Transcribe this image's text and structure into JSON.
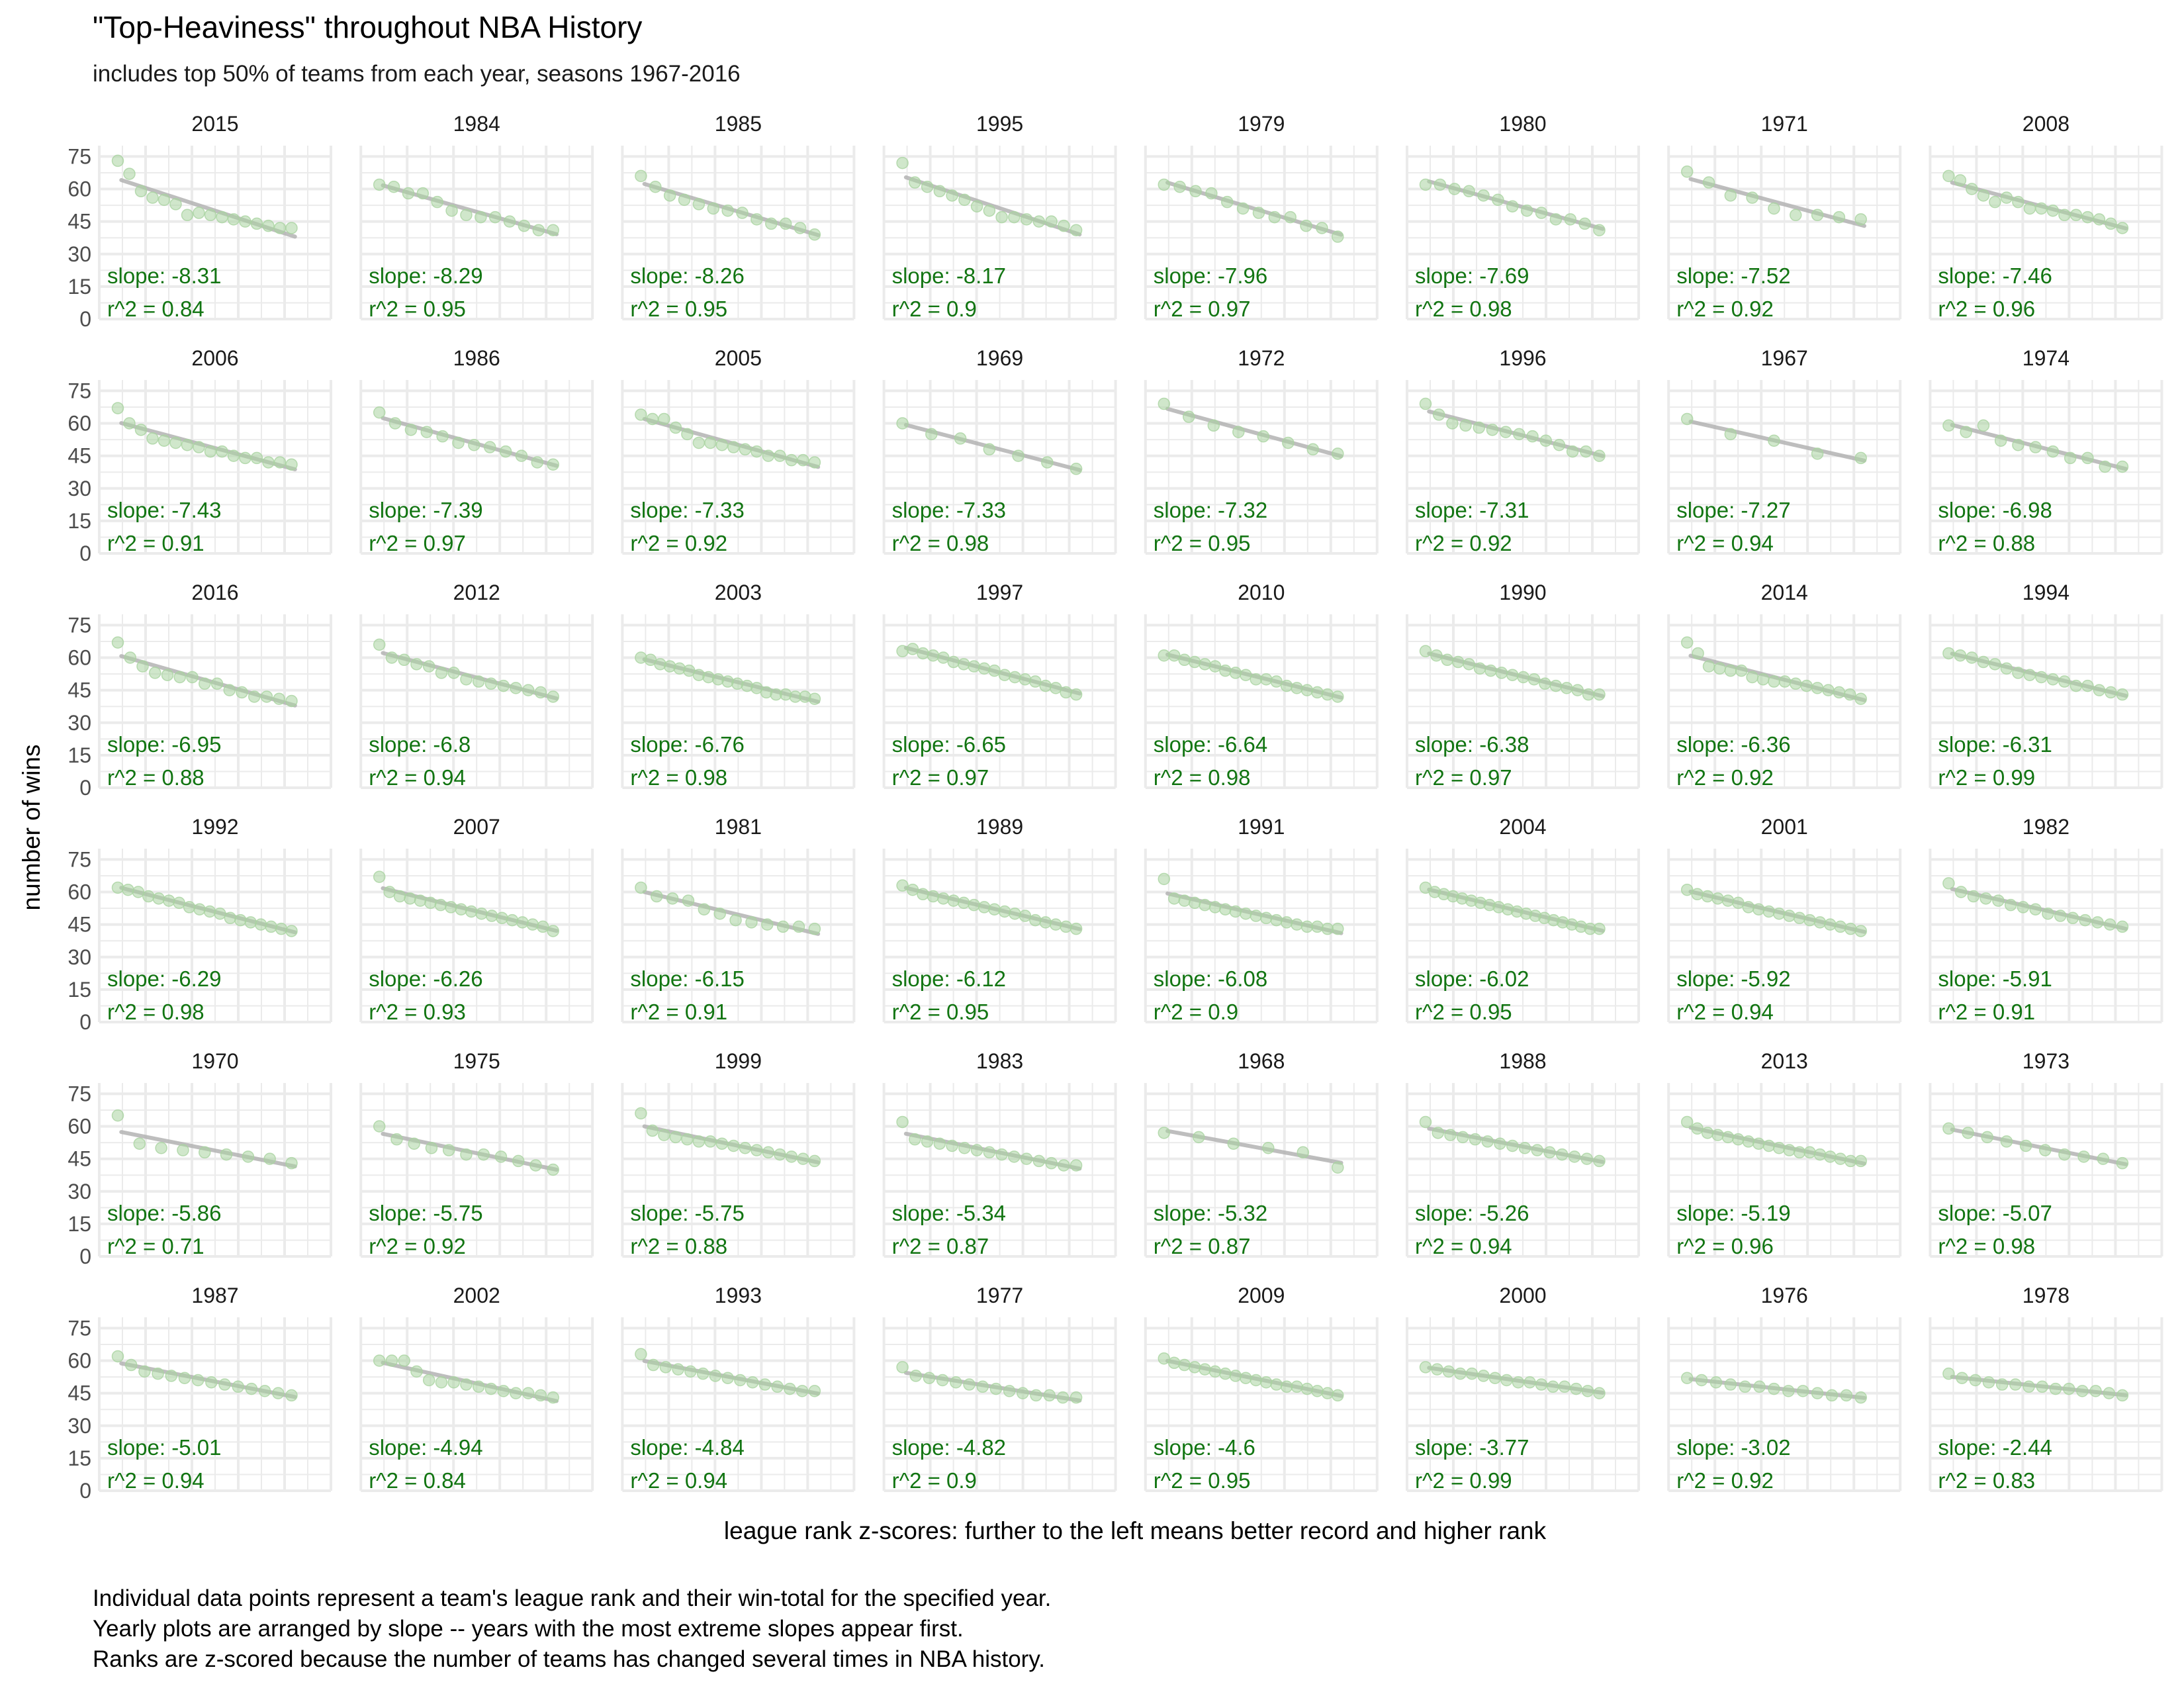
{
  "title": "\"Top-Heaviness\" throughout NBA History",
  "subtitle": "includes top 50% of teams from each year, seasons 1967-2016",
  "caption": [
    "Individual data points represent a team's league rank and their win-total for the specified year.",
    "Yearly plots are arranged by slope -- years with the most extreme slopes appear first.",
    "Ranks are z-scored because the number of teams has changed several times in NBA history."
  ],
  "colors": {
    "points": "#a9d3a0",
    "fit_line": "#b3b3b3",
    "annotation": "#127512",
    "grid": "#ebebeb"
  },
  "chart_data": {
    "type": "scatter",
    "title": "\"Top-Heaviness\" throughout NBA History",
    "subtitle": "includes top 50% of teams from each year, seasons 1967-2016",
    "xlabel": "league rank z-scores: further to the left means better record and higher rank",
    "ylabel": "number of wins",
    "y_ticks": [
      0,
      15,
      30,
      45,
      60,
      75
    ],
    "ylim": [
      0,
      80
    ],
    "grid": true,
    "facet_layout": "6 rows x 8 columns",
    "facets": [
      {
        "year": "2015",
        "slope": "-8.31",
        "r2": "0.84",
        "points": [
          73,
          67,
          59,
          56,
          55,
          53,
          48,
          49,
          48,
          47,
          46,
          45,
          44,
          43,
          42,
          42
        ]
      },
      {
        "year": "1984",
        "slope": "-8.29",
        "r2": "0.95",
        "points": [
          62,
          61,
          58,
          58,
          54,
          50,
          48,
          47,
          47,
          45,
          43,
          41,
          41
        ]
      },
      {
        "year": "1985",
        "slope": "-8.26",
        "r2": "0.95",
        "points": [
          66,
          61,
          57,
          55,
          53,
          51,
          50,
          49,
          46,
          44,
          44,
          42,
          39
        ]
      },
      {
        "year": "1995",
        "slope": "-8.17",
        "r2": "0.9",
        "points": [
          72,
          63,
          61,
          59,
          57,
          55,
          52,
          50,
          47,
          47,
          46,
          45,
          45,
          43,
          41
        ]
      },
      {
        "year": "1979",
        "slope": "-7.96",
        "r2": "0.97",
        "points": [
          62,
          61,
          59,
          58,
          54,
          51,
          49,
          47,
          47,
          43,
          42,
          38
        ]
      },
      {
        "year": "1980",
        "slope": "-7.69",
        "r2": "0.98",
        "points": [
          62,
          62,
          60,
          59,
          57,
          55,
          52,
          50,
          49,
          46,
          46,
          44,
          41
        ]
      },
      {
        "year": "1971",
        "slope": "-7.52",
        "r2": "0.92",
        "points": [
          68,
          63,
          57,
          56,
          51,
          48,
          48,
          47,
          46
        ]
      },
      {
        "year": "2008",
        "slope": "-7.46",
        "r2": "0.96",
        "points": [
          66,
          64,
          60,
          57,
          54,
          56,
          54,
          51,
          51,
          50,
          48,
          48,
          47,
          46,
          44,
          42
        ]
      },
      {
        "year": "2006",
        "slope": "-7.43",
        "r2": "0.91",
        "points": [
          67,
          60,
          57,
          53,
          52,
          51,
          50,
          49,
          47,
          47,
          45,
          44,
          44,
          42,
          42,
          41
        ]
      },
      {
        "year": "1986",
        "slope": "-7.39",
        "r2": "0.97",
        "points": [
          65,
          60,
          57,
          56,
          54,
          51,
          50,
          49,
          47,
          45,
          42,
          41
        ]
      },
      {
        "year": "2005",
        "slope": "-7.33",
        "r2": "0.92",
        "points": [
          64,
          62,
          62,
          58,
          55,
          51,
          51,
          50,
          49,
          48,
          47,
          45,
          45,
          43,
          43,
          42
        ]
      },
      {
        "year": "1969",
        "slope": "-7.33",
        "r2": "0.98",
        "points": [
          60,
          55,
          53,
          48,
          45,
          42,
          39
        ]
      },
      {
        "year": "1972",
        "slope": "-7.32",
        "r2": "0.95",
        "points": [
          69,
          63,
          59,
          56,
          54,
          51,
          48,
          46
        ]
      },
      {
        "year": "1996",
        "slope": "-7.31",
        "r2": "0.92",
        "points": [
          69,
          64,
          60,
          59,
          58,
          57,
          56,
          55,
          54,
          52,
          50,
          47,
          47,
          45
        ]
      },
      {
        "year": "1967",
        "slope": "-7.27",
        "r2": "0.94",
        "points": [
          62,
          55,
          52,
          46,
          44
        ]
      },
      {
        "year": "1974",
        "slope": "-6.98",
        "r2": "0.88",
        "points": [
          59,
          56,
          59,
          52,
          50,
          49,
          47,
          44,
          44,
          40,
          40
        ]
      },
      {
        "year": "2016",
        "slope": "-6.95",
        "r2": "0.88",
        "points": [
          67,
          60,
          56,
          53,
          52,
          51,
          51,
          48,
          48,
          45,
          44,
          42,
          42,
          41,
          40
        ]
      },
      {
        "year": "2012",
        "slope": "-6.8",
        "r2": "0.94",
        "points": [
          66,
          60,
          59,
          57,
          56,
          53,
          53,
          50,
          49,
          48,
          47,
          46,
          45,
          44,
          42
        ]
      },
      {
        "year": "2003",
        "slope": "-6.76",
        "r2": "0.98",
        "points": [
          60,
          59,
          57,
          56,
          55,
          54,
          52,
          51,
          50,
          49,
          48,
          47,
          46,
          44,
          43,
          43,
          42,
          42,
          41
        ]
      },
      {
        "year": "1997",
        "slope": "-6.65",
        "r2": "0.97",
        "points": [
          63,
          64,
          62,
          61,
          60,
          58,
          57,
          56,
          55,
          54,
          52,
          51,
          50,
          49,
          47,
          46,
          44,
          43
        ]
      },
      {
        "year": "2010",
        "slope": "-6.64",
        "r2": "0.98",
        "points": [
          61,
          61,
          59,
          58,
          57,
          56,
          54,
          53,
          52,
          50,
          50,
          49,
          47,
          46,
          45,
          44,
          43,
          42
        ]
      },
      {
        "year": "1990",
        "slope": "-6.38",
        "r2": "0.97",
        "points": [
          63,
          61,
          59,
          58,
          57,
          55,
          54,
          53,
          52,
          51,
          50,
          48,
          47,
          46,
          45,
          43,
          43
        ]
      },
      {
        "year": "2014",
        "slope": "-6.36",
        "r2": "0.92",
        "points": [
          67,
          62,
          56,
          55,
          54,
          54,
          51,
          50,
          49,
          49,
          48,
          47,
          46,
          45,
          44,
          43,
          41
        ]
      },
      {
        "year": "1994",
        "slope": "-6.31",
        "r2": "0.99",
        "points": [
          62,
          61,
          60,
          58,
          57,
          55,
          53,
          52,
          51,
          50,
          49,
          47,
          47,
          45,
          44,
          43
        ]
      },
      {
        "year": "1992",
        "slope": "-6.29",
        "r2": "0.98",
        "points": [
          62,
          61,
          60,
          58,
          57,
          56,
          55,
          53,
          52,
          51,
          50,
          48,
          47,
          46,
          45,
          44,
          43,
          42
        ]
      },
      {
        "year": "2007",
        "slope": "-6.26",
        "r2": "0.93",
        "points": [
          67,
          60,
          58,
          57,
          56,
          55,
          54,
          53,
          52,
          51,
          50,
          49,
          48,
          47,
          46,
          45,
          44,
          42
        ]
      },
      {
        "year": "1981",
        "slope": "-6.15",
        "r2": "0.91",
        "points": [
          62,
          58,
          57,
          56,
          52,
          50,
          47,
          46,
          45,
          44,
          44,
          43
        ]
      },
      {
        "year": "1989",
        "slope": "-6.12",
        "r2": "0.95",
        "points": [
          63,
          61,
          59,
          58,
          57,
          56,
          55,
          54,
          53,
          52,
          51,
          50,
          49,
          47,
          46,
          45,
          44,
          43
        ]
      },
      {
        "year": "1991",
        "slope": "-6.08",
        "r2": "0.9",
        "points": [
          66,
          57,
          56,
          55,
          54,
          53,
          52,
          51,
          50,
          49,
          48,
          47,
          46,
          45,
          44,
          44,
          43,
          43
        ]
      },
      {
        "year": "2004",
        "slope": "-6.02",
        "r2": "0.95",
        "points": [
          62,
          60,
          59,
          58,
          57,
          56,
          55,
          54,
          53,
          52,
          51,
          50,
          49,
          48,
          47,
          46,
          45,
          44,
          43,
          43
        ]
      },
      {
        "year": "2001",
        "slope": "-5.92",
        "r2": "0.94",
        "points": [
          61,
          59,
          58,
          57,
          56,
          55,
          53,
          52,
          51,
          50,
          49,
          48,
          47,
          46,
          45,
          44,
          43,
          42
        ]
      },
      {
        "year": "1982",
        "slope": "-5.91",
        "r2": "0.91",
        "points": [
          64,
          60,
          58,
          57,
          56,
          54,
          53,
          52,
          50,
          49,
          48,
          47,
          46,
          45,
          44
        ]
      },
      {
        "year": "1970",
        "slope": "-5.86",
        "r2": "0.71",
        "points": [
          65,
          52,
          50,
          49,
          48,
          47,
          46,
          45,
          43
        ]
      },
      {
        "year": "1975",
        "slope": "-5.75",
        "r2": "0.92",
        "points": [
          60,
          54,
          52,
          50,
          49,
          47,
          47,
          46,
          44,
          42,
          40
        ]
      },
      {
        "year": "1999",
        "slope": "-5.75",
        "r2": "0.88",
        "points": [
          66,
          58,
          56,
          55,
          54,
          53,
          53,
          52,
          51,
          50,
          49,
          48,
          47,
          46,
          45,
          44
        ]
      },
      {
        "year": "1983",
        "slope": "-5.34",
        "r2": "0.87",
        "points": [
          62,
          54,
          53,
          52,
          51,
          50,
          49,
          48,
          47,
          46,
          45,
          44,
          43,
          42,
          42
        ]
      },
      {
        "year": "1968",
        "slope": "-5.32",
        "r2": "0.87",
        "points": [
          57,
          55,
          52,
          50,
          48,
          41
        ]
      },
      {
        "year": "1988",
        "slope": "-5.26",
        "r2": "0.94",
        "points": [
          62,
          57,
          56,
          55,
          54,
          53,
          52,
          51,
          50,
          49,
          48,
          47,
          46,
          45,
          44
        ]
      },
      {
        "year": "2013",
        "slope": "-5.19",
        "r2": "0.96",
        "points": [
          62,
          59,
          57,
          56,
          55,
          54,
          53,
          52,
          51,
          50,
          49,
          48,
          48,
          47,
          46,
          45,
          44,
          44
        ]
      },
      {
        "year": "1973",
        "slope": "-5.07",
        "r2": "0.98",
        "points": [
          59,
          57,
          55,
          53,
          51,
          49,
          47,
          46,
          45,
          43
        ]
      },
      {
        "year": "1987",
        "slope": "-5.01",
        "r2": "0.94",
        "points": [
          62,
          58,
          55,
          54,
          53,
          52,
          51,
          50,
          49,
          48,
          47,
          46,
          45,
          44
        ]
      },
      {
        "year": "2002",
        "slope": "-4.94",
        "r2": "0.84",
        "points": [
          60,
          60,
          60,
          55,
          51,
          50,
          50,
          49,
          48,
          47,
          46,
          45,
          45,
          44,
          43
        ]
      },
      {
        "year": "1993",
        "slope": "-4.84",
        "r2": "0.94",
        "points": [
          63,
          58,
          57,
          56,
          55,
          54,
          53,
          52,
          51,
          50,
          49,
          48,
          47,
          46,
          46
        ]
      },
      {
        "year": "1977",
        "slope": "-4.82",
        "r2": "0.9",
        "points": [
          57,
          53,
          52,
          51,
          50,
          49,
          48,
          47,
          46,
          45,
          44,
          44,
          43,
          43
        ]
      },
      {
        "year": "2009",
        "slope": "-4.6",
        "r2": "0.95",
        "points": [
          61,
          59,
          58,
          57,
          56,
          55,
          54,
          53,
          52,
          51,
          50,
          49,
          48,
          48,
          47,
          46,
          45,
          44
        ]
      },
      {
        "year": "2000",
        "slope": "-3.77",
        "r2": "0.99",
        "points": [
          57,
          56,
          55,
          54,
          54,
          53,
          52,
          51,
          50,
          50,
          49,
          48,
          48,
          47,
          46,
          45
        ]
      },
      {
        "year": "1976",
        "slope": "-3.02",
        "r2": "0.92",
        "points": [
          52,
          51,
          50,
          49,
          48,
          48,
          47,
          46,
          46,
          45,
          44,
          44,
          43
        ]
      },
      {
        "year": "1978",
        "slope": "-2.44",
        "r2": "0.83",
        "points": [
          54,
          52,
          51,
          50,
          49,
          49,
          48,
          48,
          47,
          47,
          46,
          46,
          45,
          44
        ]
      }
    ]
  }
}
